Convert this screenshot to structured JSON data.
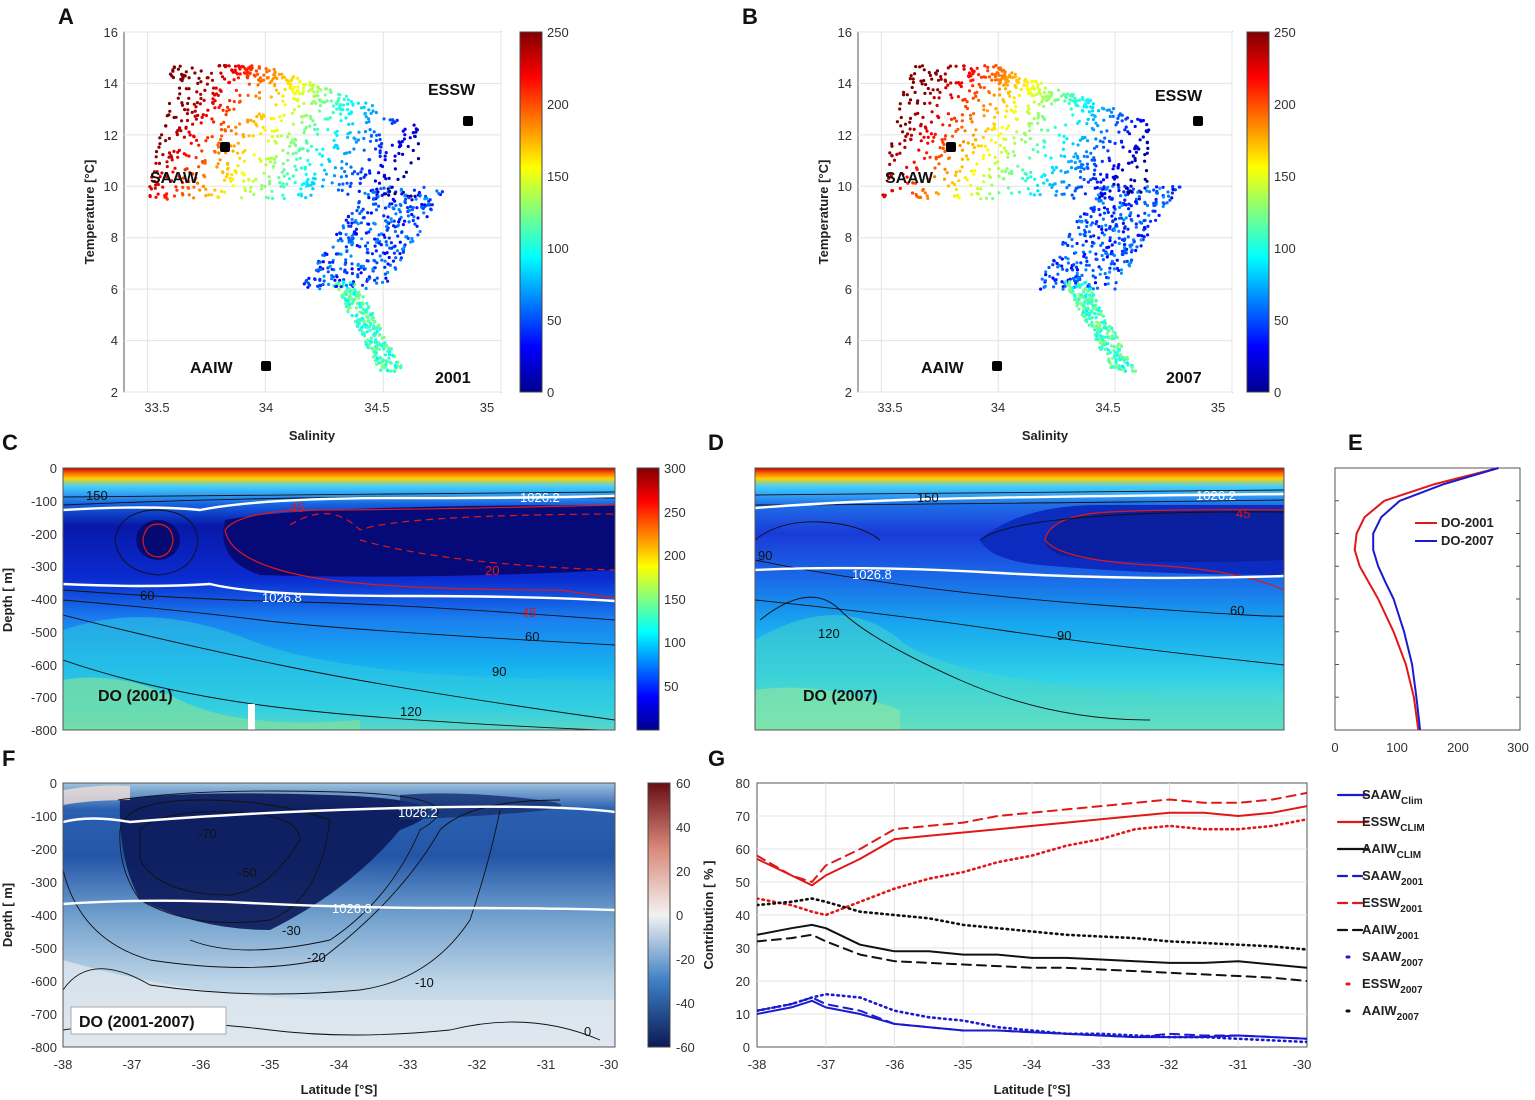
{
  "chart_data": [
    {
      "id": "A",
      "type": "scatter",
      "panel_label": "A",
      "xlabel": "Salinity",
      "ylabel": "Temperature [°C]",
      "xlim": [
        33.4,
        35.0
      ],
      "ylim": [
        2,
        16
      ],
      "xticks": [
        "33.5",
        "34",
        "34.5",
        "35"
      ],
      "yticks": [
        "2",
        "4",
        "6",
        "8",
        "10",
        "12",
        "14",
        "16"
      ],
      "colorbar": {
        "min": 0,
        "max": 250,
        "ticks": [
          "0",
          "50",
          "100",
          "150",
          "200",
          "250"
        ]
      },
      "year_label": "2001",
      "water_masses": [
        {
          "name": "SAAW",
          "salinity": 33.8,
          "temperature": 11.5
        },
        {
          "name": "ESSW",
          "salinity": 34.9,
          "temperature": 12.5
        },
        {
          "name": "AAIW",
          "salinity": 34.0,
          "temperature": 3.0
        }
      ]
    },
    {
      "id": "B",
      "type": "scatter",
      "panel_label": "B",
      "xlabel": "Salinity",
      "ylabel": "Temperature [°C]",
      "xlim": [
        33.4,
        35.0
      ],
      "ylim": [
        2,
        16
      ],
      "xticks": [
        "33.5",
        "34",
        "34.5",
        "35"
      ],
      "yticks": [
        "2",
        "4",
        "6",
        "8",
        "10",
        "12",
        "14",
        "16"
      ],
      "colorbar": {
        "min": 0,
        "max": 250,
        "ticks": [
          "0",
          "50",
          "100",
          "150",
          "200",
          "250"
        ]
      },
      "year_label": "2007",
      "water_masses": [
        {
          "name": "SAAW",
          "salinity": 33.8,
          "temperature": 11.5
        },
        {
          "name": "ESSW",
          "salinity": 34.9,
          "temperature": 12.5
        },
        {
          "name": "AAIW",
          "salinity": 34.0,
          "temperature": 3.0
        }
      ]
    },
    {
      "id": "C",
      "type": "heatmap",
      "panel_label": "C",
      "title": "DO (2001)",
      "ylabel": "Depth [ m]",
      "xlim": [
        -38,
        -30
      ],
      "ylim": [
        -800,
        0
      ],
      "yticks": [
        "0",
        "-100",
        "-200",
        "-300",
        "-400",
        "-500",
        "-600",
        "-700",
        "-800"
      ],
      "colorbar": {
        "min": 0,
        "max": 300,
        "ticks": [
          "50",
          "100",
          "150",
          "200",
          "250",
          "300"
        ]
      },
      "contour_labels": [
        "150",
        "60",
        "45",
        "20",
        "45",
        "60",
        "90",
        "120"
      ],
      "isopycnals": [
        "1026.2",
        "1026.8"
      ]
    },
    {
      "id": "D",
      "type": "heatmap",
      "panel_label": "D",
      "title": "DO (2007)",
      "xlim": [
        -38,
        -30
      ],
      "ylim": [
        -800,
        0
      ],
      "contour_labels": [
        "150",
        "45",
        "90",
        "60",
        "90",
        "120"
      ],
      "isopycnals": [
        "1026.2",
        "1026.8"
      ]
    },
    {
      "id": "E",
      "type": "line",
      "panel_label": "E",
      "xlim": [
        0,
        300
      ],
      "xticks": [
        "0",
        "100",
        "200",
        "300"
      ],
      "ylim": [
        -800,
        0
      ],
      "series": [
        {
          "name": "DO-2001",
          "color": "#e01818",
          "depth": [
            0,
            -50,
            -100,
            -150,
            -200,
            -250,
            -300,
            -350,
            -400,
            -500,
            -600,
            -700,
            -800
          ],
          "values": [
            265,
            160,
            80,
            48,
            35,
            32,
            40,
            55,
            70,
            95,
            115,
            128,
            135
          ]
        },
        {
          "name": "DO-2007",
          "color": "#1a1ad0",
          "depth": [
            0,
            -50,
            -100,
            -150,
            -200,
            -250,
            -300,
            -350,
            -400,
            -500,
            -600,
            -700,
            -800
          ],
          "values": [
            265,
            175,
            105,
            75,
            62,
            62,
            70,
            82,
            95,
            112,
            125,
            132,
            138
          ]
        }
      ]
    },
    {
      "id": "F",
      "type": "heatmap",
      "panel_label": "F",
      "title": "DO (2001-2007)",
      "xlabel": "Latitude [°S]",
      "ylabel": "Depth [ m]",
      "xlim": [
        -38,
        -30
      ],
      "xticks": [
        "-38",
        "-37",
        "-36",
        "-35",
        "-34",
        "-33",
        "-32",
        "-31",
        "-30"
      ],
      "ylim": [
        -800,
        0
      ],
      "yticks": [
        "0",
        "-100",
        "-200",
        "-300",
        "-400",
        "-500",
        "-600",
        "-700",
        "-800"
      ],
      "colorbar": {
        "min": -60,
        "max": 60,
        "ticks": [
          "60",
          "40",
          "20",
          "0",
          "-20",
          "-40",
          "-60"
        ]
      },
      "contour_labels": [
        "-70",
        "-50",
        "-30",
        "-20",
        "-10",
        "0"
      ],
      "isopycnals": [
        "1026.2",
        "1026.8"
      ]
    },
    {
      "id": "G",
      "type": "line",
      "panel_label": "G",
      "xlabel": "Latitude [°S]",
      "ylabel": "Contribution [ % ]",
      "xlim": [
        -38,
        -30
      ],
      "ylim": [
        0,
        80
      ],
      "xticks": [
        "-38",
        "-37",
        "-36",
        "-35",
        "-34",
        "-33",
        "-32",
        "-31",
        "-30"
      ],
      "yticks": [
        "0",
        "10",
        "20",
        "30",
        "40",
        "50",
        "60",
        "70",
        "80"
      ],
      "x": [
        -38,
        -37.5,
        -37.2,
        -37,
        -36.5,
        -36,
        -35.5,
        -35,
        -34.5,
        -34,
        -33.5,
        -33,
        -32.5,
        -32,
        -31.5,
        -31,
        -30.5,
        -30
      ],
      "series": [
        {
          "name": "SAAW",
          "sub": "Clim",
          "style": "solid",
          "color": "#1a1ad0",
          "values": [
            10,
            12,
            14,
            12,
            10,
            7,
            6,
            5,
            5,
            4.5,
            4,
            3.5,
            3,
            3,
            3,
            3.5,
            3,
            2.5
          ]
        },
        {
          "name": "ESSW",
          "sub": "CLIM",
          "style": "solid",
          "color": "#e01818",
          "values": [
            57,
            52,
            49,
            52,
            57,
            63,
            64,
            65,
            66,
            67,
            68,
            69,
            70,
            71,
            71,
            70,
            71,
            73
          ]
        },
        {
          "name": "AAIW",
          "sub": "CLIM",
          "style": "solid",
          "color": "#111111",
          "values": [
            34,
            36,
            37,
            36,
            31,
            29,
            29,
            28,
            28,
            27,
            27,
            26.5,
            26,
            25.5,
            25.5,
            26,
            25,
            24
          ]
        },
        {
          "name": "SAAW",
          "sub": "2001",
          "style": "dashed",
          "color": "#1a1ad0",
          "values": [
            11,
            13,
            15,
            13,
            11,
            7,
            6,
            5,
            5,
            4.5,
            4,
            3.5,
            3,
            4,
            3.5,
            3.5,
            3,
            2.5
          ]
        },
        {
          "name": "ESSW",
          "sub": "2001",
          "style": "dashed",
          "color": "#e01818",
          "values": [
            58,
            52,
            50,
            55,
            60,
            66,
            67,
            68,
            70,
            71,
            72,
            73,
            74,
            75,
            74,
            74,
            75,
            77
          ]
        },
        {
          "name": "AAIW",
          "sub": "2001",
          "style": "dashed",
          "color": "#111111",
          "values": [
            32,
            33,
            34,
            32,
            28,
            26,
            25.5,
            25,
            24.5,
            24,
            24,
            23.5,
            23,
            22.5,
            22,
            21.5,
            21,
            20
          ]
        },
        {
          "name": "SAAW",
          "sub": "2007",
          "style": "dotted",
          "color": "#1a1ad0",
          "values": [
            11,
            13,
            15,
            16,
            15,
            11,
            9,
            8,
            6,
            5,
            4,
            4,
            3.5,
            3,
            3,
            2.5,
            2,
            1.5
          ]
        },
        {
          "name": "ESSW",
          "sub": "2007",
          "style": "dotted",
          "color": "#e01818",
          "values": [
            45,
            43,
            41,
            40,
            44,
            48,
            51,
            53,
            56,
            58,
            61,
            63,
            66,
            67,
            66,
            66,
            67,
            69
          ]
        },
        {
          "name": "AAIW",
          "sub": "2007",
          "style": "dotted",
          "color": "#111111",
          "values": [
            43,
            44,
            45,
            44,
            41,
            40,
            39,
            37,
            36,
            35,
            34,
            33.5,
            33,
            32,
            31.5,
            31,
            30.5,
            29.5
          ]
        }
      ]
    }
  ]
}
